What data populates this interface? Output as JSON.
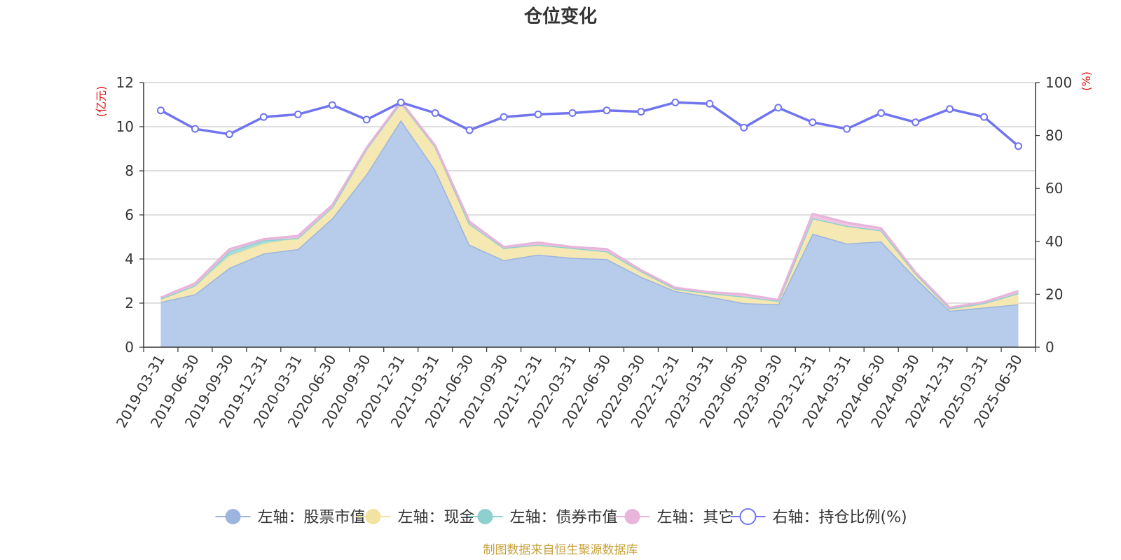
{
  "chart_data": {
    "type": "area",
    "title": "仓位变化",
    "left_unit": "(亿元)",
    "right_unit": "(%)",
    "left_ylim": [
      0,
      12
    ],
    "left_ticks": [
      "0",
      "2",
      "4",
      "6",
      "8",
      "10",
      "12"
    ],
    "right_ylim": [
      0,
      100
    ],
    "right_ticks": [
      "0",
      "20",
      "40",
      "60",
      "80",
      "100"
    ],
    "categories": [
      "2019-03-31",
      "2019-06-30",
      "2019-09-30",
      "2019-12-31",
      "2020-03-31",
      "2020-06-30",
      "2020-09-30",
      "2020-12-31",
      "2021-03-31",
      "2021-06-30",
      "2021-09-30",
      "2021-12-31",
      "2022-03-31",
      "2022-06-30",
      "2022-09-30",
      "2022-12-31",
      "2023-03-31",
      "2023-06-30",
      "2023-09-30",
      "2023-12-31",
      "2024-03-31",
      "2024-06-30",
      "2024-09-30",
      "2024-12-31",
      "2025-03-31",
      "2025-06-30"
    ],
    "series": [
      {
        "name": "左轴：股票市值",
        "axis": "left",
        "color": "#9bb5df",
        "fill": "#b7cbea",
        "values": [
          2.05,
          2.4,
          3.6,
          4.25,
          4.45,
          5.85,
          7.85,
          10.3,
          8.05,
          4.65,
          3.95,
          4.2,
          4.05,
          4.0,
          3.2,
          2.55,
          2.3,
          2.0,
          1.95,
          5.15,
          4.7,
          4.8,
          3.15,
          1.65,
          1.8,
          1.95
        ]
      },
      {
        "name": "左轴：现金",
        "axis": "left",
        "color": "#f3e3a0",
        "fill": "#f6e8b2",
        "values": [
          0.15,
          0.4,
          0.55,
          0.45,
          0.5,
          0.5,
          1.15,
          0.8,
          1.05,
          0.95,
          0.55,
          0.45,
          0.45,
          0.35,
          0.25,
          0.1,
          0.15,
          0.3,
          0.15,
          0.7,
          0.8,
          0.5,
          0.2,
          0.1,
          0.2,
          0.5
        ]
      },
      {
        "name": "左轴：债券市值",
        "axis": "left",
        "color": "#8fd0cf",
        "fill": "#a8dcda",
        "values": [
          0,
          0,
          0.2,
          0.15,
          0,
          0,
          0,
          0,
          0,
          0,
          0,
          0,
          0,
          0,
          0,
          0,
          0,
          0,
          0,
          0,
          0,
          0,
          0,
          0,
          0,
          0
        ]
      },
      {
        "name": "左轴：其它",
        "axis": "left",
        "color": "#e8b4da",
        "fill": "#eec5e3",
        "values": [
          0.05,
          0.1,
          0.1,
          0.05,
          0.1,
          0.1,
          0.05,
          0.05,
          0.05,
          0.1,
          0.05,
          0.1,
          0.05,
          0.1,
          0.05,
          0.05,
          0.05,
          0.1,
          0.05,
          0.2,
          0.15,
          0.1,
          0.05,
          0.05,
          0.05,
          0.1
        ]
      },
      {
        "name": "右轴：持仓比例(%)",
        "axis": "right",
        "color": "#7074ee",
        "values": [
          89.5,
          82.5,
          80.5,
          87,
          88,
          91.5,
          86,
          92.5,
          88.5,
          82,
          87,
          88,
          88.5,
          89.5,
          89,
          92.5,
          92,
          83,
          90.5,
          85,
          82.5,
          88.5,
          85,
          90,
          87,
          76
        ]
      }
    ],
    "grid": true,
    "legend_position": "bottom-center",
    "source": "制图数据来自恒生聚源数据库"
  }
}
